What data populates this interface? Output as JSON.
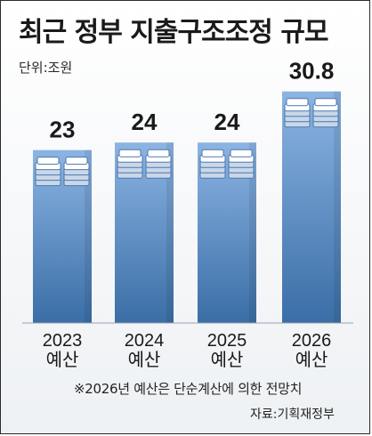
{
  "title": "최근 정부 지출구조조정 규모",
  "unit_label": "단위:조원",
  "footnote": "※2026년 예산은 단순계산에 의한 전망치",
  "source": "자료:기획재정부",
  "colors": {
    "bar_top": "#8cb4e3",
    "bar_bottom": "#3a6ea6",
    "money_light": "#ffffff",
    "money_shade": "#c9d7e8",
    "money_edge": "#4a78ad"
  },
  "icon": "money-stack-icon",
  "chart_data": {
    "type": "bar",
    "title": "최근 정부 지출구조조정 규모",
    "unit": "조원",
    "categories": [
      "2023 예산",
      "2024 예산",
      "2025 예산",
      "2026 예산"
    ],
    "category_lines": [
      [
        "2023",
        "예산"
      ],
      [
        "2024",
        "예산"
      ],
      [
        "2025",
        "예산"
      ],
      [
        "2026",
        "예산"
      ]
    ],
    "values": [
      23,
      24,
      24,
      30.8
    ],
    "value_labels": [
      "23",
      "24",
      "24",
      "30.8"
    ],
    "ylim": [
      0,
      32
    ],
    "grid": false,
    "legend": "none"
  }
}
